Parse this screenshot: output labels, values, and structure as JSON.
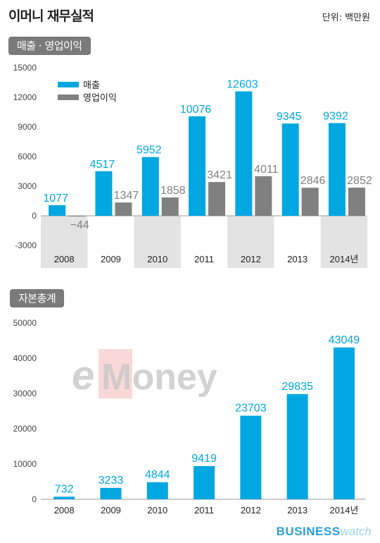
{
  "header": {
    "title": "이머니 재무실적",
    "unit": "단위: 백만원"
  },
  "sections": {
    "revenue_op": "매출 · 영업이익",
    "equity": "자본총계"
  },
  "colors": {
    "revenue": "#00a7e1",
    "op_profit": "#808080",
    "shade": "#e3e3e3"
  },
  "chart_data": [
    {
      "type": "bar",
      "title": "매출 · 영업이익",
      "categories": [
        "2008",
        "2009",
        "2010",
        "2011",
        "2012",
        "2013",
        "2014년"
      ],
      "series": [
        {
          "name": "매출",
          "values": [
            1077,
            4517,
            5952,
            10076,
            12603,
            9345,
            9392
          ]
        },
        {
          "name": "영업이익",
          "values": [
            -44,
            1347,
            1858,
            3421,
            4011,
            2846,
            2852
          ]
        }
      ],
      "yticks": [
        "15000",
        "12000",
        "9000",
        "6000",
        "3000",
        "0",
        "-3000"
      ],
      "ylim": [
        -3000,
        15000
      ],
      "legend_position": "top-left",
      "xlabel": "",
      "ylabel": ""
    },
    {
      "type": "bar",
      "title": "자본총계",
      "categories": [
        "2008",
        "2009",
        "2010",
        "2011",
        "2012",
        "2013",
        "2014년"
      ],
      "values": [
        732,
        3233,
        4844,
        9419,
        23703,
        29835,
        43049
      ],
      "yticks": [
        "50000",
        "40000",
        "30000",
        "20000",
        "10000",
        "0"
      ],
      "ylim": [
        0,
        50000
      ],
      "xlabel": "",
      "ylabel": ""
    }
  ],
  "watermark": {
    "text_e": "e",
    "text_rest": "Money"
  },
  "footer": {
    "brand_bold": "BUSINESS",
    "brand_light": "watch"
  }
}
